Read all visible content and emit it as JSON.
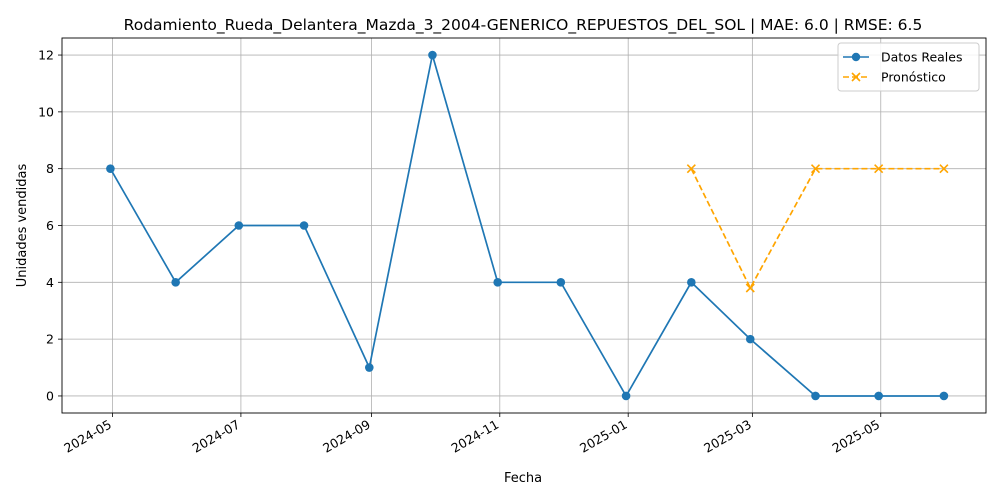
{
  "chart_data": {
    "type": "line",
    "title": "Rodamiento_Rueda_Delantera_Mazda_3_2004-GENERICO_REPUESTOS_DEL_SOL | MAE: 6.0 | RMSE: 6.5",
    "xlabel": "Fecha",
    "ylabel": "Unidades vendidas",
    "x_tick_labels": [
      "2024-05",
      "2024-07",
      "2024-09",
      "2024-11",
      "2025-01",
      "2025-03",
      "2025-05"
    ],
    "x_ticks": [
      "2024-05-01",
      "2024-07-01",
      "2024-09-01",
      "2024-11-01",
      "2025-01-01",
      "2025-03-01",
      "2025-05-01"
    ],
    "y_ticks": [
      0,
      2,
      4,
      6,
      8,
      10,
      12
    ],
    "xlim": [
      "2024-04-07",
      "2025-06-20"
    ],
    "ylim": [
      -0.6,
      12.6
    ],
    "grid": true,
    "legend_position": "upper right",
    "series": [
      {
        "name": "Datos Reales",
        "color": "#1f77b4",
        "marker": "circle",
        "linestyle": "solid",
        "x": [
          "2024-04-30",
          "2024-05-31",
          "2024-06-30",
          "2024-07-31",
          "2024-08-31",
          "2024-09-30",
          "2024-10-31",
          "2024-11-30",
          "2024-12-31",
          "2025-01-31",
          "2025-02-28",
          "2025-03-31",
          "2025-04-30",
          "2025-05-31"
        ],
        "y": [
          8,
          4,
          6,
          6,
          1,
          12,
          4,
          4,
          0,
          4,
          2,
          0,
          0,
          0
        ]
      },
      {
        "name": "Pronóstico",
        "color": "#ffa500",
        "marker": "x",
        "linestyle": "dashed",
        "x": [
          "2025-01-31",
          "2025-02-28",
          "2025-03-31",
          "2025-04-30",
          "2025-05-31"
        ],
        "y": [
          8,
          3.8,
          8,
          8,
          8
        ]
      }
    ]
  }
}
